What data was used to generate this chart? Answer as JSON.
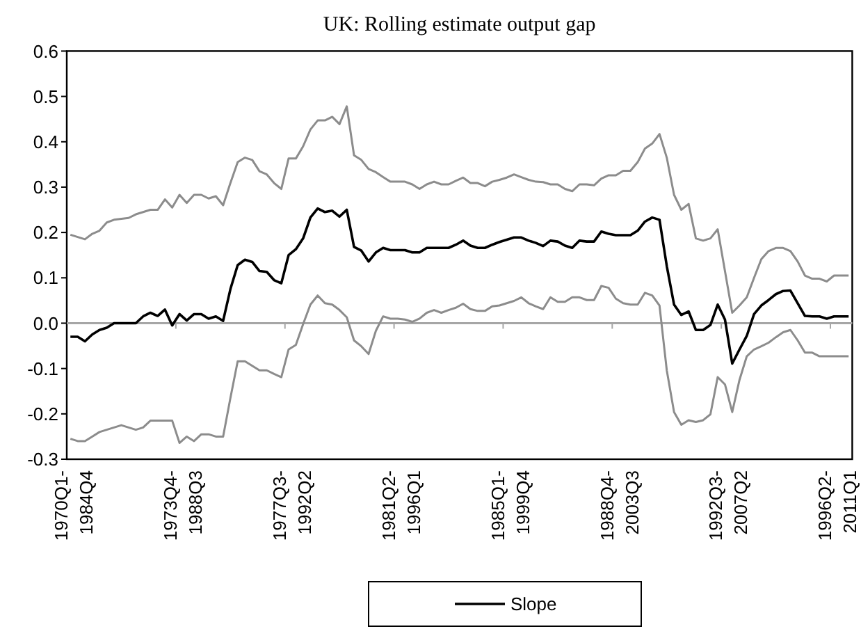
{
  "chart_data": {
    "type": "line",
    "title": "UK: Rolling estimate output gap",
    "categories": [
      "1970Q1-1984Q4",
      null,
      null,
      null,
      null,
      null,
      null,
      null,
      null,
      null,
      null,
      null,
      null,
      null,
      null,
      "1973Q4-1988Q3",
      null,
      null,
      null,
      null,
      null,
      null,
      null,
      null,
      null,
      null,
      null,
      null,
      null,
      null,
      "1977Q3-1992Q2",
      null,
      null,
      null,
      null,
      null,
      null,
      null,
      null,
      null,
      null,
      null,
      null,
      null,
      null,
      "1981Q2-1996Q1",
      null,
      null,
      null,
      null,
      null,
      null,
      null,
      null,
      null,
      null,
      null,
      null,
      null,
      null,
      "1985Q1-1999Q4",
      null,
      null,
      null,
      null,
      null,
      null,
      null,
      null,
      null,
      null,
      null,
      null,
      null,
      null,
      "1988Q4-2003Q3",
      null,
      null,
      null,
      null,
      null,
      null,
      null,
      null,
      null,
      null,
      null,
      null,
      null,
      null,
      "1992Q3-2007Q2",
      null,
      null,
      null,
      null,
      null,
      null,
      null,
      null,
      null,
      null,
      null,
      null,
      null,
      null,
      "1996Q2-2011Q1",
      null,
      null
    ],
    "series": [
      {
        "name": null,
        "color": "#8c8c8c",
        "values": [
          0.195,
          0.19,
          0.185,
          0.197,
          0.204,
          0.222,
          0.228,
          0.23,
          0.232,
          0.24,
          0.245,
          0.25,
          0.25,
          0.273,
          0.255,
          0.283,
          0.265,
          0.283,
          0.283,
          0.275,
          0.28,
          0.26,
          0.309,
          0.355,
          0.365,
          0.36,
          0.335,
          0.328,
          0.309,
          0.296,
          0.363,
          0.363,
          0.39,
          0.427,
          0.447,
          0.447,
          0.455,
          0.439,
          0.478,
          0.37,
          0.36,
          0.34,
          0.333,
          0.322,
          0.312,
          0.312,
          0.312,
          0.306,
          0.296,
          0.306,
          0.312,
          0.306,
          0.306,
          0.314,
          0.321,
          0.309,
          0.309,
          0.302,
          0.312,
          0.316,
          0.321,
          0.328,
          0.322,
          0.316,
          0.312,
          0.311,
          0.306,
          0.306,
          0.296,
          0.291,
          0.306,
          0.306,
          0.304,
          0.319,
          0.326,
          0.326,
          0.336,
          0.336,
          0.355,
          0.385,
          0.396,
          0.417,
          0.365,
          0.283,
          0.25,
          0.263,
          0.187,
          0.182,
          0.187,
          0.207,
          0.115,
          0.023,
          0.039,
          0.057,
          0.1,
          0.141,
          0.159,
          0.166,
          0.166,
          0.159,
          0.136,
          0.105,
          0.098,
          0.098,
          0.092,
          0.105,
          0.105,
          0.105
        ]
      },
      {
        "name": null,
        "color": "#8c8c8c",
        "values": [
          -0.255,
          -0.26,
          -0.26,
          -0.25,
          -0.24,
          -0.235,
          -0.23,
          -0.225,
          -0.23,
          -0.235,
          -0.23,
          -0.215,
          -0.215,
          -0.215,
          -0.215,
          -0.264,
          -0.25,
          -0.26,
          -0.245,
          -0.245,
          -0.25,
          -0.25,
          -0.165,
          -0.084,
          -0.084,
          -0.094,
          -0.104,
          -0.104,
          -0.112,
          -0.119,
          -0.058,
          -0.048,
          -0.002,
          0.041,
          0.061,
          0.044,
          0.041,
          0.029,
          0.013,
          -0.038,
          -0.051,
          -0.068,
          -0.017,
          0.015,
          0.01,
          0.01,
          0.008,
          0.003,
          0.01,
          0.023,
          0.029,
          0.023,
          0.029,
          0.034,
          0.043,
          0.031,
          0.027,
          0.027,
          0.037,
          0.039,
          0.044,
          0.049,
          0.057,
          0.044,
          0.037,
          0.031,
          0.057,
          0.047,
          0.047,
          0.057,
          0.057,
          0.051,
          0.051,
          0.082,
          0.078,
          0.054,
          0.044,
          0.041,
          0.041,
          0.067,
          0.061,
          0.039,
          -0.104,
          -0.196,
          -0.224,
          -0.214,
          -0.218,
          -0.214,
          -0.201,
          -0.119,
          -0.135,
          -0.196,
          -0.125,
          -0.073,
          -0.058,
          -0.051,
          -0.043,
          -0.031,
          -0.02,
          -0.015,
          -0.038,
          -0.065,
          -0.065,
          -0.073,
          -0.073,
          -0.073,
          -0.073,
          -0.073
        ]
      },
      {
        "name": "Slope",
        "color": "#000000",
        "values": [
          -0.03,
          -0.03,
          -0.04,
          -0.025,
          -0.015,
          -0.01,
          0,
          0,
          0,
          0,
          0.015,
          0.023,
          0.016,
          0.03,
          -0.005,
          0.02,
          0.006,
          0.02,
          0.02,
          0.01,
          0.015,
          0.005,
          0.075,
          0.128,
          0.14,
          0.135,
          0.115,
          0.113,
          0.095,
          0.088,
          0.15,
          0.163,
          0.187,
          0.233,
          0.253,
          0.245,
          0.248,
          0.235,
          0.25,
          0.168,
          0.16,
          0.136,
          0.156,
          0.166,
          0.161,
          0.161,
          0.161,
          0.156,
          0.156,
          0.166,
          0.166,
          0.166,
          0.166,
          0.173,
          0.182,
          0.171,
          0.166,
          0.166,
          0.173,
          0.179,
          0.184,
          0.189,
          0.189,
          0.182,
          0.177,
          0.17,
          0.182,
          0.18,
          0.171,
          0.166,
          0.182,
          0.18,
          0.18,
          0.202,
          0.197,
          0.194,
          0.194,
          0.194,
          0.204,
          0.224,
          0.233,
          0.228,
          0.126,
          0.041,
          0.018,
          0.026,
          -0.015,
          -0.015,
          -0.004,
          0.041,
          0.008,
          -0.089,
          -0.058,
          -0.028,
          0.02,
          0.039,
          0.051,
          0.064,
          0.071,
          0.072,
          0.044,
          0.016,
          0.015,
          0.015,
          0.01,
          0.015,
          0.015,
          0.015
        ]
      }
    ],
    "ylim": [
      -0.3,
      0.6
    ],
    "yticks": [
      -0.3,
      -0.2,
      -0.1,
      {
        "value": 0,
        "label": "0.0"
      },
      0.1,
      0.2,
      0.3,
      0.4,
      0.5,
      0.6
    ],
    "legend": "bottom",
    "marker": "none",
    "line_style": "solid"
  }
}
